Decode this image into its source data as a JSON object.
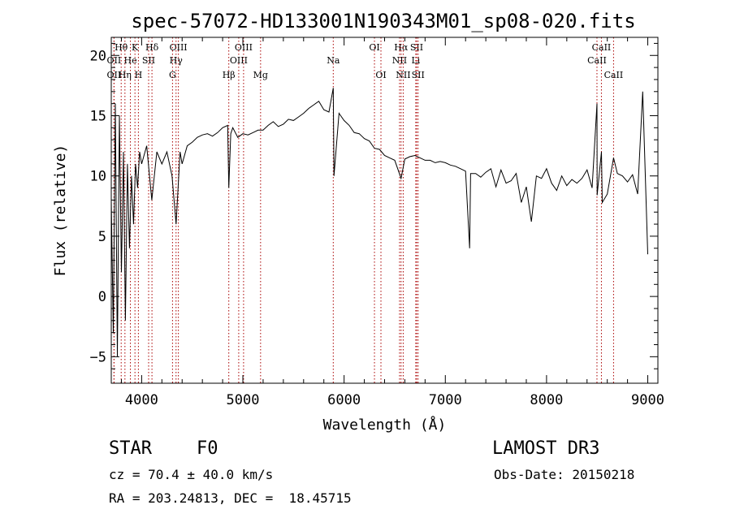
{
  "chart_data": {
    "type": "line",
    "title": "spec-57072-HD133001N190343M01_sp08-020.fits",
    "xlabel": "Wavelength (Å)",
    "ylabel": "Flux (relative)",
    "xlim": [
      3700,
      9100
    ],
    "ylim": [
      -7.2,
      21.5
    ],
    "xticks": [
      4000,
      5000,
      6000,
      7000,
      8000,
      9000
    ],
    "yticks": [
      -5,
      0,
      5,
      10,
      15,
      20
    ],
    "xtick_labels": [
      "4000",
      "5000",
      "6000",
      "7000",
      "8000",
      "9000"
    ],
    "ytick_labels": [
      "−5",
      "0",
      "5",
      "10",
      "15",
      "20"
    ],
    "grid": false,
    "line_color": "#000000",
    "marker_color": "#aa0000",
    "series": [
      {
        "name": "flux",
        "x": [
          3700,
          3720,
          3740,
          3760,
          3780,
          3800,
          3820,
          3840,
          3860,
          3880,
          3900,
          3920,
          3940,
          3960,
          3980,
          4000,
          4050,
          4100,
          4150,
          4200,
          4250,
          4300,
          4340,
          4380,
          4400,
          4450,
          4500,
          4550,
          4600,
          4650,
          4700,
          4750,
          4800,
          4850,
          4861,
          4880,
          4900,
          4950,
          5000,
          5050,
          5100,
          5150,
          5200,
          5250,
          5300,
          5350,
          5400,
          5450,
          5500,
          5550,
          5600,
          5650,
          5700,
          5750,
          5800,
          5850,
          5893,
          5900,
          5950,
          6000,
          6050,
          6100,
          6150,
          6200,
          6250,
          6300,
          6350,
          6400,
          6450,
          6500,
          6563,
          6600,
          6650,
          6700,
          6750,
          6800,
          6850,
          6900,
          6950,
          7000,
          7050,
          7100,
          7150,
          7200,
          7240,
          7250,
          7300,
          7350,
          7400,
          7450,
          7500,
          7550,
          7600,
          7650,
          7700,
          7750,
          7800,
          7850,
          7900,
          7950,
          8000,
          8050,
          8100,
          8150,
          8200,
          8250,
          8300,
          8350,
          8400,
          8450,
          8498,
          8500,
          8542,
          8550,
          8600,
          8662,
          8700,
          8750,
          8800,
          8850,
          8900,
          8950,
          9000
        ],
        "y": [
          8,
          -3,
          16,
          -5,
          15,
          2,
          12,
          -2,
          11,
          4,
          10,
          6,
          11,
          9,
          12,
          11,
          12.5,
          8,
          12,
          11,
          12,
          10,
          6,
          12,
          11,
          12.5,
          12.8,
          13.2,
          13.4,
          13.5,
          13.3,
          13.6,
          14,
          14.2,
          9,
          13.5,
          14,
          13.2,
          13.5,
          13.4,
          13.6,
          13.8,
          13.8,
          14.2,
          14.5,
          14.1,
          14.3,
          14.7,
          14.6,
          14.9,
          15.2,
          15.6,
          15.9,
          16.2,
          15.5,
          15.3,
          17.3,
          10,
          15.2,
          14.6,
          14.2,
          13.6,
          13.5,
          13.1,
          12.9,
          12.3,
          12.2,
          11.7,
          11.5,
          11.3,
          9.8,
          11.4,
          11.6,
          11.7,
          11.5,
          11.3,
          11.3,
          11.1,
          11.2,
          11.1,
          10.9,
          10.8,
          10.6,
          10.4,
          4,
          10.2,
          10.2,
          9.9,
          10.3,
          10.6,
          9.1,
          10.5,
          9.4,
          9.6,
          10.2,
          7.8,
          9.1,
          6.2,
          10,
          9.8,
          10.6,
          9.4,
          8.8,
          10,
          9.2,
          9.7,
          9.4,
          9.8,
          10.5,
          9,
          16,
          8.4,
          12,
          7.8,
          8.5,
          11.5,
          10.2,
          10,
          9.5,
          10.1,
          8.5,
          17,
          3.5
        ]
      }
    ],
    "line_markers": [
      {
        "name": "Hθ",
        "x": 3798,
        "row": 1
      },
      {
        "name": "OII",
        "x": 3727,
        "row": 2
      },
      {
        "name": "He",
        "x": 3889,
        "row": 2
      },
      {
        "name": "OII",
        "x": 3727,
        "row": 3
      },
      {
        "name": "Hη",
        "x": 3835,
        "row": 3
      },
      {
        "name": "K",
        "x": 3934,
        "row": 1
      },
      {
        "name": "SII",
        "x": 4069,
        "row": 2
      },
      {
        "name": "H",
        "x": 3968,
        "row": 3
      },
      {
        "name": "Hδ",
        "x": 4102,
        "row": 1
      },
      {
        "name": "OIII",
        "x": 4363,
        "row": 1
      },
      {
        "name": "Hγ",
        "x": 4340,
        "row": 2
      },
      {
        "name": "G",
        "x": 4305,
        "row": 3
      },
      {
        "name": "Hβ",
        "x": 4861,
        "row": 3
      },
      {
        "name": "OIII",
        "x": 5007,
        "row": 1
      },
      {
        "name": "OIII",
        "x": 4959,
        "row": 2
      },
      {
        "name": "Mg",
        "x": 5175,
        "row": 3
      },
      {
        "name": "Na",
        "x": 5893,
        "row": 2
      },
      {
        "name": "OI",
        "x": 6300,
        "row": 1
      },
      {
        "name": "OI",
        "x": 6364,
        "row": 3
      },
      {
        "name": "Hα",
        "x": 6563,
        "row": 1
      },
      {
        "name": "NII",
        "x": 6548,
        "row": 2
      },
      {
        "name": "NII",
        "x": 6584,
        "row": 3
      },
      {
        "name": "SII",
        "x": 6717,
        "row": 1
      },
      {
        "name": "Li",
        "x": 6708,
        "row": 2
      },
      {
        "name": "SII",
        "x": 6731,
        "row": 3
      },
      {
        "name": "CaII",
        "x": 8542,
        "row": 1
      },
      {
        "name": "CaII",
        "x": 8498,
        "row": 2
      },
      {
        "name": "CaII",
        "x": 8662,
        "row": 3
      }
    ]
  },
  "info": {
    "class_label": "STAR",
    "subclass": "F0",
    "survey": "LAMOST DR3",
    "cz": "cz = 70.4 ± 40.0 km/s",
    "obs_date": "Obs-Date: 20150218",
    "coords": "RA = 203.24813, DEC =  18.45715"
  }
}
